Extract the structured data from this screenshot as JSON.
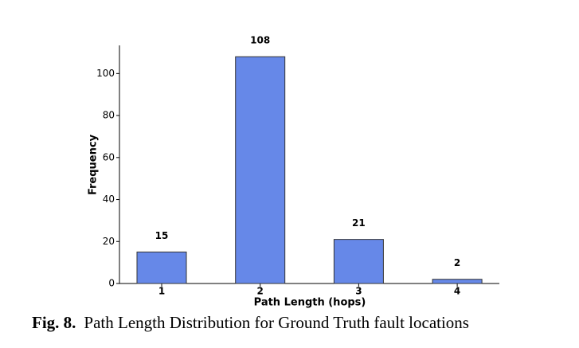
{
  "chart_data": {
    "type": "bar",
    "categories": [
      "1",
      "2",
      "3",
      "4"
    ],
    "values": [
      15,
      108,
      21,
      2
    ],
    "color": "#6688e8",
    "x_label": "Path Length (hops)",
    "y_label": "Frequency",
    "ylim": [
      0,
      113.4
    ],
    "yticks": [
      0,
      20,
      40,
      60,
      80,
      100
    ],
    "grid": false
  },
  "caption": {
    "label": "Fig. 8.",
    "text": "Path Length Distribution for Ground Truth fault locations"
  }
}
